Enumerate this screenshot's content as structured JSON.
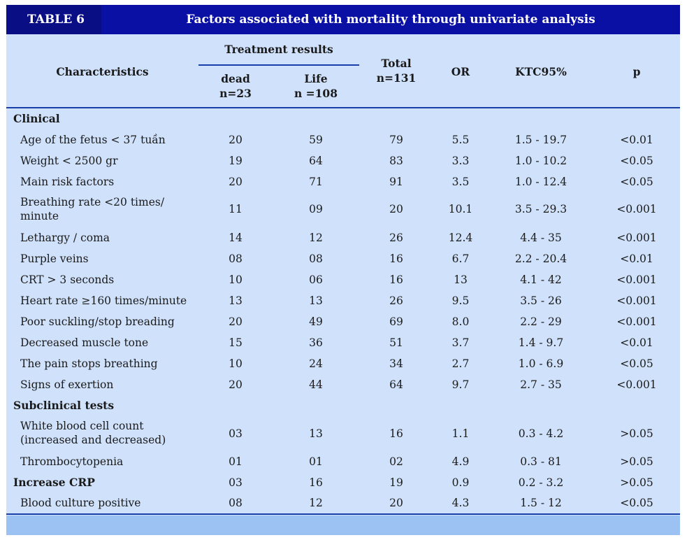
{
  "table": {
    "tag": "TABLE 6",
    "title": "Factors associated with mortality through univariate analysis",
    "header": {
      "characteristics": "Characteristics",
      "treatment_results": "Treatment results",
      "dead": "dead",
      "dead_n": "n=23",
      "life": "Life",
      "life_n": "n =108",
      "total": "Total",
      "total_n": "n=131",
      "or": "OR",
      "ci": "KTC95%",
      "p": "p"
    },
    "sections": {
      "clinical": "Clinical",
      "subclinical": "Subclinical tests"
    },
    "rows": [
      {
        "label": "Age of the fetus < 37 tuần",
        "dead": "20",
        "life": "59",
        "total": "79",
        "or": "5.5",
        "ci": "1.5 - 19.7",
        "p": "<0.01"
      },
      {
        "label": "Weight < 2500 gr",
        "dead": "19",
        "life": "64",
        "total": "83",
        "or": "3.3",
        "ci": "1.0 - 10.2",
        "p": "<0.05"
      },
      {
        "label": "Main risk factors",
        "dead": "20",
        "life": "71",
        "total": "91",
        "or": "3.5",
        "ci": "1.0 - 12.4",
        "p": "<0.05"
      },
      {
        "label_line1": "Breathing rate <20 times/",
        "label_line2": "minute",
        "dead": "11",
        "life": "09",
        "total": "20",
        "or": "10.1",
        "ci": "3.5 - 29.3",
        "p": "<0.001"
      },
      {
        "label": "Lethargy / coma",
        "dead": "14",
        "life": "12",
        "total": "26",
        "or": "12.4",
        "ci": "4.4 - 35",
        "p": "<0.001"
      },
      {
        "label": "Purple veins",
        "dead": "08",
        "life": "08",
        "total": "16",
        "or": "6.7",
        "ci": "2.2 - 20.4",
        "p": "<0.01"
      },
      {
        "label": "CRT > 3 seconds",
        "dead": "10",
        "life": "06",
        "total": "16",
        "or": "13",
        "ci": "4.1 - 42",
        "p": "<0.001"
      },
      {
        "label": "Heart rate ≥160 times/minute",
        "dead": "13",
        "life": "13",
        "total": "26",
        "or": "9.5",
        "ci": "3.5 - 26",
        "p": "<0.001"
      },
      {
        "label": "Poor suckling/stop breading",
        "dead": "20",
        "life": "49",
        "total": "69",
        "or": "8.0",
        "ci": "2.2 - 29",
        "p": "<0.001"
      },
      {
        "label": "Decreased muscle tone",
        "dead": "15",
        "life": "36",
        "total": "51",
        "or": "3.7",
        "ci": "1.4 - 9.7",
        "p": "<0.01"
      },
      {
        "label": "The pain stops breathing",
        "dead": "10",
        "life": "24",
        "total": "34",
        "or": "2.7",
        "ci": "1.0 - 6.9",
        "p": "<0.05"
      },
      {
        "label": "Signs of exertion",
        "dead": "20",
        "life": "44",
        "total": "64",
        "or": "9.7",
        "ci": "2.7 - 35",
        "p": "<0.001"
      },
      {
        "label_line1": "White blood cell count",
        "label_line2": "(increased and decreased)",
        "dead": "03",
        "life": "13",
        "total": "16",
        "or": "1.1",
        "ci": "0.3 - 4.2",
        "p": ">0.05"
      },
      {
        "label": "Thrombocytopenia",
        "dead": "01",
        "life": "01",
        "total": "02",
        "or": "4.9",
        "ci": "0.3 - 81",
        "p": ">0.05"
      },
      {
        "label": "Increase CRP",
        "dead": "03",
        "life": "16",
        "total": "19",
        "or": "0.9",
        "ci": "0.2 - 3.2",
        "p": ">0.05"
      },
      {
        "label": "Blood culture positive",
        "dead": "08",
        "life": "12",
        "total": "20",
        "or": "4.3",
        "ci": "1.5 - 12",
        "p": "<0.05"
      }
    ]
  }
}
